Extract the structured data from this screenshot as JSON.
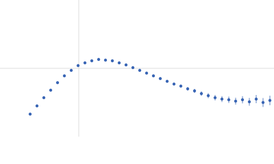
{
  "chart_data": {
    "type": "scatter",
    "x": [
      44,
      54,
      64,
      74,
      84,
      94,
      104,
      114,
      124,
      134,
      144,
      154,
      164,
      174,
      184,
      194,
      204,
      214,
      224,
      234,
      244,
      254,
      264,
      274,
      284,
      294,
      304,
      314,
      324,
      334,
      344,
      354,
      364,
      374,
      384,
      394
    ],
    "series": [
      {
        "color": "#3a66b5",
        "values": [
          33,
          45,
          57,
          68,
          79,
          89,
          97,
          104,
          108,
          111,
          113,
          112,
          111,
          108,
          105,
          101,
          97,
          93,
          89,
          85,
          81,
          77,
          74,
          70,
          67,
          63,
          60,
          57,
          55,
          54,
          52,
          54,
          51,
          55,
          50,
          53
        ],
        "errors": [
          0.5,
          0.5,
          0.5,
          0.5,
          0.5,
          0.5,
          0.5,
          0.5,
          0.5,
          0.5,
          0.5,
          0.5,
          0.6,
          0.7,
          0.8,
          0.9,
          1,
          1.2,
          1.4,
          1.6,
          1.8,
          2,
          2.3,
          2.6,
          3,
          3.3,
          3.6,
          4,
          4.3,
          4.6,
          5,
          5.3,
          5.6,
          6,
          6.5,
          7
        ]
      }
    ],
    "xlim": [
      0,
      400
    ],
    "ylim": [
      0,
      200
    ],
    "xticks": [
      115
    ],
    "yticks": [
      100
    ],
    "grid": true
  }
}
